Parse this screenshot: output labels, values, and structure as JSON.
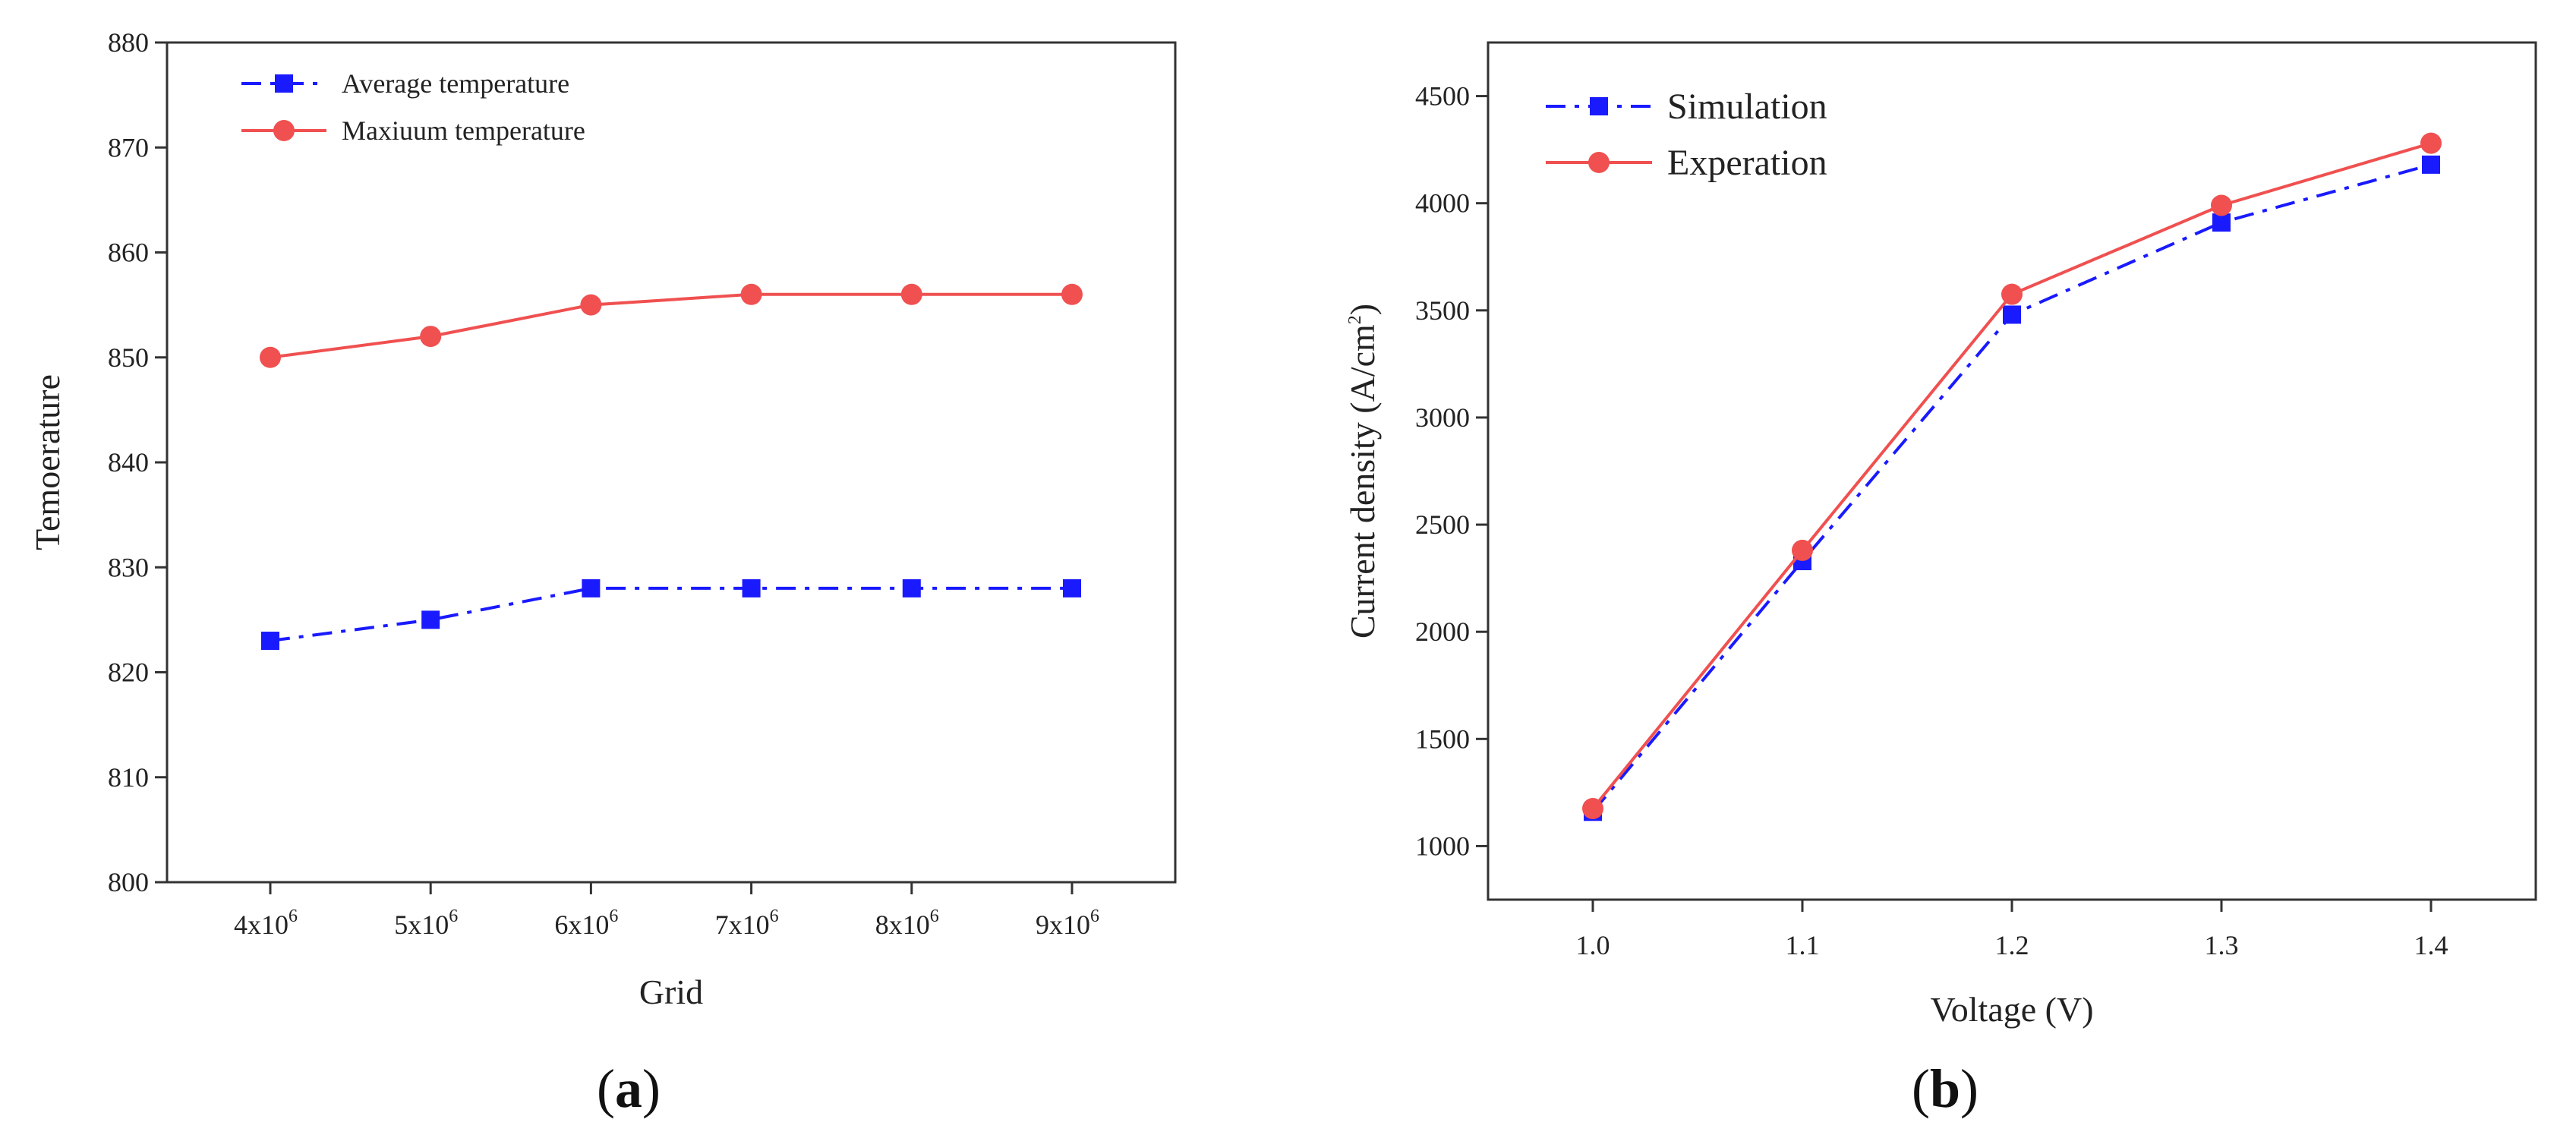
{
  "chart_data": [
    {
      "panel": "a",
      "caption": {
        "open": "(",
        "letter": "a",
        "close": ")"
      },
      "type": "line",
      "xlabel": "Grid",
      "ylabel": "Temoerature",
      "categories": [
        {
          "base": "4x10",
          "sup": "6"
        },
        {
          "base": "5x10",
          "sup": "6"
        },
        {
          "base": "6x10",
          "sup": "6"
        },
        {
          "base": "7x10",
          "sup": "6"
        },
        {
          "base": "8x10",
          "sup": "6"
        },
        {
          "base": "9x10",
          "sup": "6"
        }
      ],
      "ylim": [
        800,
        880
      ],
      "yticks": [
        800,
        810,
        820,
        830,
        840,
        850,
        860,
        870,
        880
      ],
      "legend_position": "top-left",
      "series": [
        {
          "name": "Average temperature",
          "values": [
            823,
            825,
            828,
            828,
            828,
            828
          ],
          "color": "#1a1aff",
          "marker": "square",
          "dash": "dashdot"
        },
        {
          "name": "Maxiuum temperature",
          "values": [
            850,
            852,
            855,
            856,
            856,
            856
          ],
          "color": "#f05050",
          "marker": "circle",
          "dash": "solid"
        }
      ]
    },
    {
      "panel": "b",
      "caption": {
        "open": "(",
        "letter": "b",
        "close": ")"
      },
      "type": "line",
      "xlabel": "Voltage (V)",
      "ylabel": {
        "text": "Current density (A/cm",
        "sup": "2",
        "close": ")"
      },
      "x": [
        1.0,
        1.1,
        1.2,
        1.3,
        1.4
      ],
      "xtick_labels": [
        "1.0",
        "1.1",
        "1.2",
        "1.3",
        "1.4"
      ],
      "xlim": [
        0.95,
        1.45
      ],
      "ylim": [
        750,
        4750
      ],
      "yticks": [
        1000,
        1500,
        2000,
        2500,
        3000,
        3500,
        4000,
        4500
      ],
      "legend_position": "top-left",
      "series": [
        {
          "name": "Simulation",
          "values": [
            1160,
            2330,
            3480,
            3910,
            4180
          ],
          "color": "#1a1aff",
          "marker": "square",
          "dash": "dashdot"
        },
        {
          "name": "Experation",
          "values": [
            1175,
            2380,
            3575,
            3990,
            4280
          ],
          "color": "#f05050",
          "marker": "circle",
          "dash": "solid"
        }
      ]
    }
  ]
}
